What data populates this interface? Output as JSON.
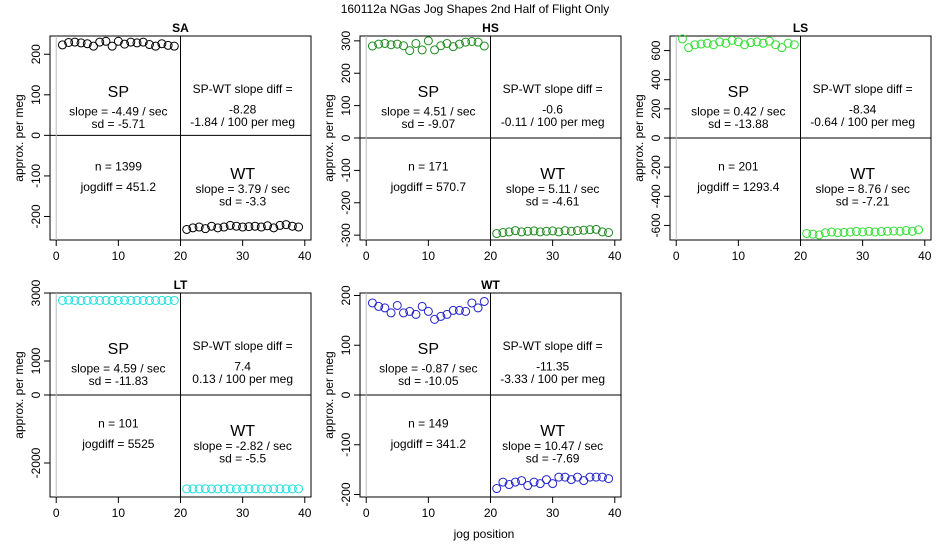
{
  "page": {
    "title": "160112a   NGas Jog Shapes 2nd Half of Flight Only",
    "xlabel": "jog position"
  },
  "chart_data": [
    {
      "type": "scatter",
      "title": "SA",
      "ylabel": "approx. per meg",
      "xlim": [
        -1,
        41
      ],
      "ylim": [
        -258,
        245
      ],
      "xticks": [
        0,
        10,
        20,
        30,
        40
      ],
      "yticks": [
        -200,
        -100,
        0,
        100,
        200
      ],
      "color": "#000000",
      "series": [
        {
          "x": [
            1,
            2,
            3,
            4,
            5,
            6,
            7,
            8,
            9,
            10,
            11,
            12,
            13,
            14,
            15,
            16,
            17,
            18,
            19
          ],
          "y": [
            223,
            229,
            230,
            228,
            226,
            220,
            230,
            232,
            220,
            232,
            225,
            230,
            228,
            230,
            224,
            220,
            226,
            222,
            220
          ]
        },
        {
          "x": [
            21,
            22,
            23,
            24,
            25,
            26,
            27,
            28,
            29,
            30,
            31,
            32,
            33,
            34,
            35,
            36,
            37,
            38,
            39
          ],
          "y": [
            -232,
            -228,
            -226,
            -230,
            -224,
            -228,
            -226,
            -222,
            -224,
            -226,
            -225,
            -224,
            -226,
            -223,
            -228,
            -222,
            -220,
            -224,
            -226
          ]
        }
      ],
      "annotations": {
        "sp": "SP",
        "sp_slope": "slope = -4.49 / sec",
        "sp_sd": "sd = -5.71",
        "diff_title": "SP-WT slope diff =",
        "diff_value": "-8.28",
        "diff_per_meg": "-1.84 / 100 per meg",
        "n": "n = 1399",
        "jogdiff": "jogdiff = 451.2",
        "wt": "WT",
        "wt_slope": "slope = 3.79 / sec",
        "wt_sd": "sd = -3.3"
      }
    },
    {
      "type": "scatter",
      "title": "HS",
      "ylabel": "approx. per meg",
      "xlim": [
        -1,
        41
      ],
      "ylim": [
        -315,
        315
      ],
      "xticks": [
        0,
        10,
        20,
        30,
        40
      ],
      "yticks": [
        -300,
        -200,
        -100,
        0,
        100,
        200,
        300
      ],
      "color": "#1e8c1e",
      "series": [
        {
          "x": [
            1,
            2,
            3,
            4,
            5,
            6,
            7,
            8,
            9,
            10,
            11,
            12,
            13,
            14,
            15,
            16,
            17,
            18,
            19
          ],
          "y": [
            284,
            290,
            292,
            288,
            290,
            285,
            270,
            292,
            272,
            300,
            272,
            285,
            292,
            282,
            290,
            296,
            298,
            296,
            284
          ]
        },
        {
          "x": [
            21,
            22,
            23,
            24,
            25,
            26,
            27,
            28,
            29,
            30,
            31,
            32,
            33,
            34,
            35,
            36,
            37,
            38,
            39
          ],
          "y": [
            -295,
            -292,
            -290,
            -286,
            -290,
            -288,
            -287,
            -290,
            -288,
            -287,
            -290,
            -286,
            -288,
            -286,
            -285,
            -283,
            -282,
            -290,
            -292
          ]
        }
      ],
      "annotations": {
        "sp": "SP",
        "sp_slope": "slope = 4.51 / sec",
        "sp_sd": "sd = -9.07",
        "diff_title": "SP-WT slope diff =",
        "diff_value": "-0.6",
        "diff_per_meg": "-0.11 / 100 per meg",
        "n": "n = 171",
        "jogdiff": "jogdiff = 570.7",
        "wt": "WT",
        "wt_slope": "slope = 5.11 / sec",
        "wt_sd": "sd = -4.61"
      }
    },
    {
      "type": "scatter",
      "title": "LS",
      "ylabel": "approx. per meg",
      "xlim": [
        -1,
        41
      ],
      "ylim": [
        -700,
        700
      ],
      "xticks": [
        0,
        10,
        20,
        30,
        40
      ],
      "yticks": [
        -600,
        -400,
        -200,
        0,
        200,
        400,
        600
      ],
      "color": "#33dd33",
      "series": [
        {
          "x": [
            1,
            2,
            3,
            4,
            5,
            6,
            7,
            8,
            9,
            10,
            11,
            12,
            13,
            14,
            15,
            16,
            17,
            18,
            19
          ],
          "y": [
            680,
            620,
            640,
            645,
            650,
            640,
            660,
            650,
            670,
            660,
            640,
            655,
            660,
            650,
            665,
            640,
            620,
            650,
            640
          ]
        },
        {
          "x": [
            21,
            22,
            23,
            24,
            25,
            26,
            27,
            28,
            29,
            30,
            31,
            32,
            33,
            34,
            35,
            36,
            37,
            38,
            39
          ],
          "y": [
            -655,
            -660,
            -665,
            -650,
            -645,
            -650,
            -648,
            -645,
            -642,
            -645,
            -640,
            -645,
            -642,
            -640,
            -638,
            -640,
            -635,
            -640,
            -630
          ]
        }
      ],
      "annotations": {
        "sp": "SP",
        "sp_slope": "slope = 0.42 / sec",
        "sp_sd": "sd = -13.88",
        "diff_title": "SP-WT slope diff =",
        "diff_value": "-8.34",
        "diff_per_meg": "-0.64 / 100 per meg",
        "n": "n = 201",
        "jogdiff": "jogdiff = 1293.4",
        "wt": "WT",
        "wt_slope": "slope = 8.76 / sec",
        "wt_sd": "sd = -7.21"
      }
    },
    {
      "type": "scatter",
      "title": "LT",
      "ylabel": "approx. per meg",
      "xlim": [
        -1,
        41
      ],
      "ylim": [
        -3000,
        3000
      ],
      "xticks": [
        0,
        10,
        20,
        30,
        40
      ],
      "yticks": [
        -2000,
        0,
        1000,
        3000
      ],
      "color": "#22dddd",
      "series": [
        {
          "x": [
            1,
            2,
            3,
            4,
            5,
            6,
            7,
            8,
            9,
            10,
            11,
            12,
            13,
            14,
            15,
            16,
            17,
            18,
            19
          ],
          "y": [
            2780,
            2790,
            2780,
            2775,
            2780,
            2785,
            2780,
            2782,
            2778,
            2780,
            2785,
            2780,
            2782,
            2780,
            2778,
            2780,
            2782,
            2780,
            2780
          ]
        },
        {
          "x": [
            21,
            22,
            23,
            24,
            25,
            26,
            27,
            28,
            29,
            30,
            31,
            32,
            33,
            34,
            35,
            36,
            37,
            38,
            39
          ],
          "y": [
            -2760,
            -2762,
            -2760,
            -2758,
            -2762,
            -2760,
            -2760,
            -2758,
            -2762,
            -2760,
            -2760,
            -2758,
            -2762,
            -2760,
            -2760,
            -2758,
            -2762,
            -2760,
            -2760
          ]
        }
      ],
      "annotations": {
        "sp": "SP",
        "sp_slope": "slope = 4.59 / sec",
        "sp_sd": "sd = -11.83",
        "diff_title": "SP-WT slope diff =",
        "diff_value": "7.4",
        "diff_per_meg": "0.13 / 100 per meg",
        "n": "n = 101",
        "jogdiff": "jogdiff = 5525",
        "wt": "WT",
        "wt_slope": "slope = -2.82 / sec",
        "wt_sd": "sd = -5.5"
      }
    },
    {
      "type": "scatter",
      "title": "WT",
      "ylabel": "approx. per meg",
      "xlim": [
        -1,
        41
      ],
      "ylim": [
        -205,
        205
      ],
      "xticks": [
        0,
        10,
        20,
        30,
        40
      ],
      "yticks": [
        -200,
        -100,
        0,
        100,
        200
      ],
      "color": "#2222cc",
      "series": [
        {
          "x": [
            1,
            2,
            3,
            4,
            5,
            6,
            7,
            8,
            9,
            10,
            11,
            12,
            13,
            14,
            15,
            16,
            17,
            18,
            19
          ],
          "y": [
            185,
            178,
            175,
            165,
            180,
            165,
            168,
            162,
            178,
            168,
            152,
            158,
            162,
            170,
            170,
            168,
            185,
            175,
            188
          ]
        },
        {
          "x": [
            21,
            22,
            23,
            24,
            25,
            26,
            27,
            28,
            29,
            30,
            31,
            32,
            33,
            34,
            35,
            36,
            37,
            38,
            39
          ],
          "y": [
            -188,
            -175,
            -180,
            -175,
            -172,
            -182,
            -175,
            -178,
            -170,
            -178,
            -165,
            -165,
            -170,
            -165,
            -172,
            -165,
            -165,
            -165,
            -168
          ]
        }
      ],
      "annotations": {
        "sp": "SP",
        "sp_slope": "slope = -0.87 / sec",
        "sp_sd": "sd = -10.05",
        "diff_title": "SP-WT slope diff =",
        "diff_value": "-11.35",
        "diff_per_meg": "-3.33 / 100 per meg",
        "n": "n = 149",
        "jogdiff": "jogdiff = 341.2",
        "wt": "WT",
        "wt_slope": "slope = 10.47 / sec",
        "wt_sd": "sd = -7.69"
      }
    }
  ]
}
